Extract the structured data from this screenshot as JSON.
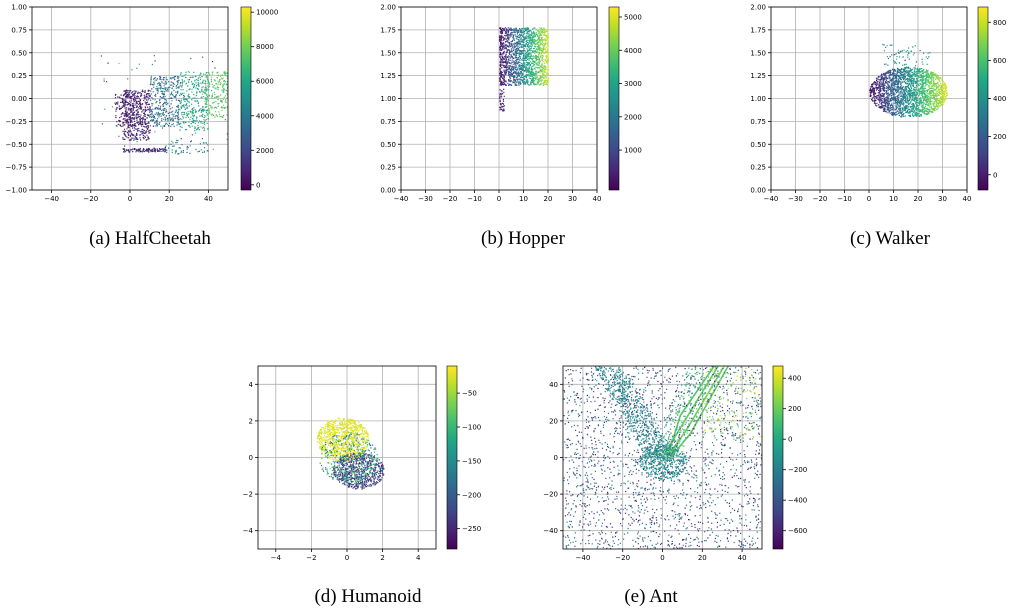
{
  "chart_data": [
    {
      "type": "scatter",
      "caption": "(a) HalfCheetah",
      "xlim": [
        -50,
        50
      ],
      "ylim": [
        -1.0,
        1.0
      ],
      "xticks": [
        "−40",
        "−20",
        "0",
        "20",
        "40"
      ],
      "yticks": [
        "−1.00",
        "−0.75",
        "−0.50",
        "−0.25",
        "0.00",
        "0.25",
        "0.50",
        "0.75",
        "1.00"
      ],
      "colorbar": {
        "range": [
          -300,
          10300
        ],
        "ticks": [
          "0",
          "2000",
          "4000",
          "6000",
          "8000",
          "10000"
        ]
      },
      "grid": true,
      "clusters": [
        {
          "shape": "rect",
          "x": [
            -4,
            10
          ],
          "y": [
            -0.45,
            0.1
          ],
          "n": 450,
          "c": [
            0,
            1800
          ]
        },
        {
          "shape": "rect",
          "x": [
            -8,
            4
          ],
          "y": [
            -0.3,
            0.05
          ],
          "n": 150,
          "c": [
            0,
            800
          ]
        },
        {
          "shape": "rect",
          "x": [
            10,
            25
          ],
          "y": [
            -0.3,
            0.25
          ],
          "n": 350,
          "c": [
            2000,
            5000
          ]
        },
        {
          "shape": "rect",
          "x": [
            25,
            40
          ],
          "y": [
            -0.35,
            0.3
          ],
          "n": 320,
          "c": [
            4500,
            7500
          ]
        },
        {
          "shape": "rect",
          "x": [
            38,
            50
          ],
          "y": [
            -0.2,
            0.3
          ],
          "n": 200,
          "c": [
            6500,
            8500
          ]
        },
        {
          "shape": "rect",
          "x": [
            -4,
            18
          ],
          "y": [
            -0.58,
            -0.54
          ],
          "n": 120,
          "c": [
            0,
            2000
          ]
        },
        {
          "shape": "rect",
          "x": [
            18,
            40
          ],
          "y": [
            -0.6,
            -0.45
          ],
          "n": 50,
          "c": [
            3000,
            6000
          ]
        },
        {
          "shape": "rect",
          "x": [
            -15,
            50
          ],
          "y": [
            -0.6,
            0.5
          ],
          "n": 70,
          "c": [
            0,
            8000
          ]
        }
      ]
    },
    {
      "type": "scatter",
      "caption": "(b) Hopper",
      "xlim": [
        -40,
        40
      ],
      "ylim": [
        0.0,
        2.0
      ],
      "xticks": [
        "−40",
        "−30",
        "−20",
        "−10",
        "0",
        "10",
        "20",
        "30",
        "40"
      ],
      "yticks": [
        "0.00",
        "0.25",
        "0.50",
        "0.75",
        "1.00",
        "1.25",
        "1.50",
        "1.75",
        "2.00"
      ],
      "colorbar": {
        "range": [
          -200,
          5300
        ],
        "ticks": [
          "1000",
          "2000",
          "3000",
          "4000",
          "5000"
        ]
      },
      "grid": true,
      "clusters": [
        {
          "shape": "rect",
          "x": [
            0,
            20
          ],
          "y": [
            1.15,
            1.78
          ],
          "n": 1700,
          "c": [
            0,
            5000
          ],
          "cmode": "x"
        },
        {
          "shape": "rect",
          "x": [
            0,
            2
          ],
          "y": [
            0.85,
            1.3
          ],
          "n": 60,
          "c": [
            0,
            500
          ]
        }
      ]
    },
    {
      "type": "scatter",
      "caption": "(c) Walker",
      "xlim": [
        -40,
        40
      ],
      "ylim": [
        0.0,
        2.0
      ],
      "xticks": [
        "−40",
        "−30",
        "−20",
        "−10",
        "0",
        "10",
        "20",
        "30",
        "40"
      ],
      "yticks": [
        "0.00",
        "0.25",
        "0.50",
        "0.75",
        "1.00",
        "1.25",
        "1.50",
        "1.75",
        "2.00"
      ],
      "colorbar": {
        "range": [
          -80,
          880
        ],
        "ticks": [
          "0",
          "200",
          "400",
          "600",
          "800"
        ]
      },
      "grid": true,
      "clusters": [
        {
          "shape": "ellipse",
          "x": [
            0,
            32
          ],
          "y": [
            0.8,
            1.35
          ],
          "n": 2200,
          "c": [
            -50,
            850
          ],
          "cmode": "x"
        },
        {
          "shape": "rect",
          "x": [
            5,
            25
          ],
          "y": [
            1.35,
            1.6
          ],
          "n": 70,
          "c": [
            200,
            600
          ]
        }
      ]
    },
    {
      "type": "scatter",
      "caption": "(d) Humanoid",
      "xlim": [
        -5,
        5
      ],
      "ylim": [
        -5,
        5
      ],
      "xticks": [
        "−4",
        "−2",
        "0",
        "2",
        "4"
      ],
      "yticks": [
        "−4",
        "−2",
        "0",
        "2",
        "4"
      ],
      "colorbar": {
        "range": [
          -280,
          -10
        ],
        "ticks": [
          "−250",
          "−200",
          "−150",
          "−100",
          "−50"
        ]
      },
      "grid": true,
      "clusters": [
        {
          "shape": "ellipse",
          "x": [
            -1.7,
            1.2
          ],
          "y": [
            -0.2,
            2.2
          ],
          "n": 900,
          "c": [
            -30,
            -15
          ]
        },
        {
          "shape": "ellipse",
          "x": [
            -0.8,
            2.1
          ],
          "y": [
            -1.7,
            0.3
          ],
          "n": 700,
          "c": [
            -270,
            -170
          ]
        },
        {
          "shape": "ellipse",
          "x": [
            -1.6,
            1.7
          ],
          "y": [
            -1.4,
            1.4
          ],
          "n": 350,
          "c": [
            -200,
            -60
          ]
        }
      ]
    },
    {
      "type": "scatter",
      "caption": "(e) Ant",
      "xlim": [
        -50,
        50
      ],
      "ylim": [
        -50,
        50
      ],
      "xticks": [
        "−40",
        "−20",
        "0",
        "20",
        "40"
      ],
      "yticks": [
        "−40",
        "−20",
        "0",
        "20",
        "40"
      ],
      "colorbar": {
        "range": [
          -720,
          480
        ],
        "ticks": [
          "−600",
          "−400",
          "−200",
          "0",
          "200",
          "400"
        ]
      },
      "grid": true,
      "clusters": [
        {
          "shape": "rect",
          "x": [
            -50,
            50
          ],
          "y": [
            -50,
            50
          ],
          "n": 1900,
          "c": [
            -650,
            -120
          ]
        },
        {
          "shape": "band",
          "x": [
            -28,
            0
          ],
          "y": [
            50,
            0
          ],
          "w": 14,
          "n": 650,
          "c": [
            -250,
            -120
          ]
        },
        {
          "shape": "ellipse",
          "x": [
            -12,
            12
          ],
          "y": [
            -12,
            8
          ],
          "n": 450,
          "c": [
            -200,
            -100
          ]
        },
        {
          "shape": "band",
          "x": [
            0,
            22
          ],
          "y": [
            0,
            50
          ],
          "w": 16,
          "n": 250,
          "c": [
            -50,
            200
          ]
        },
        {
          "shape": "rect",
          "x": [
            20,
            50
          ],
          "y": [
            10,
            50
          ],
          "n": 180,
          "c": [
            100,
            450
          ]
        }
      ],
      "lines": [
        {
          "points": [
            [
              0,
              0
            ],
            [
              10,
              18
            ],
            [
              28,
              50
            ]
          ],
          "c": 200
        },
        {
          "points": [
            [
              2,
              0
            ],
            [
              12,
              15
            ],
            [
              31,
              50
            ]
          ],
          "c": 220
        },
        {
          "points": [
            [
              4,
              0
            ],
            [
              14,
              13
            ],
            [
              33,
              50
            ]
          ],
          "c": 180
        },
        {
          "points": [
            [
              3,
              2
            ],
            [
              9,
              23
            ],
            [
              26,
              50
            ]
          ],
          "c": 160
        }
      ]
    }
  ]
}
